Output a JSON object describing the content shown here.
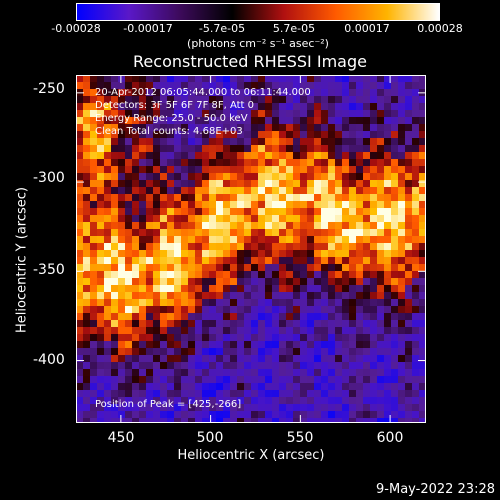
{
  "colorbar": {
    "ticks": [
      "-0.00028",
      "-0.00017",
      "-5.7e-05",
      "5.7e-05",
      "0.00017",
      "0.00028"
    ],
    "unit_line": "(photons cm⁻² s⁻¹ asec⁻²)",
    "colors": [
      "#0000ff",
      "#5a18c8",
      "#3c0a5a",
      "#000000",
      "#b01010",
      "#ff5a00",
      "#ffb400",
      "#ffffff"
    ]
  },
  "annotations": {
    "line1": "20-Apr-2012 06:05:44.000 to 06:11:44.000",
    "line2": "Detectors: 3F 5F 6F 7F 8F, Att 0",
    "line3": "Energy Range: 25.0 - 50.0 keV",
    "line4": "Clean    Total counts: 4.68E+03",
    "peak": "Position of Peak = [425,-266]"
  },
  "timestamp": "9-May-2022 23:28",
  "chart_data": {
    "type": "heatmap",
    "title": "Reconstructed RHESSI Image",
    "xlabel": "Heliocentric X (arcsec)",
    "ylabel": "Heliocentric Y (arcsec)",
    "xlim": [
      425,
      620
    ],
    "ylim": [
      -435,
      -240
    ],
    "x_ticks": [
      "450",
      "500",
      "550",
      "600"
    ],
    "y_ticks": [
      "-250",
      "-300",
      "-350",
      "-400"
    ],
    "colorbar_range": [
      -0.00028,
      0.00028
    ],
    "peak_position": [
      425,
      -266
    ]
  }
}
